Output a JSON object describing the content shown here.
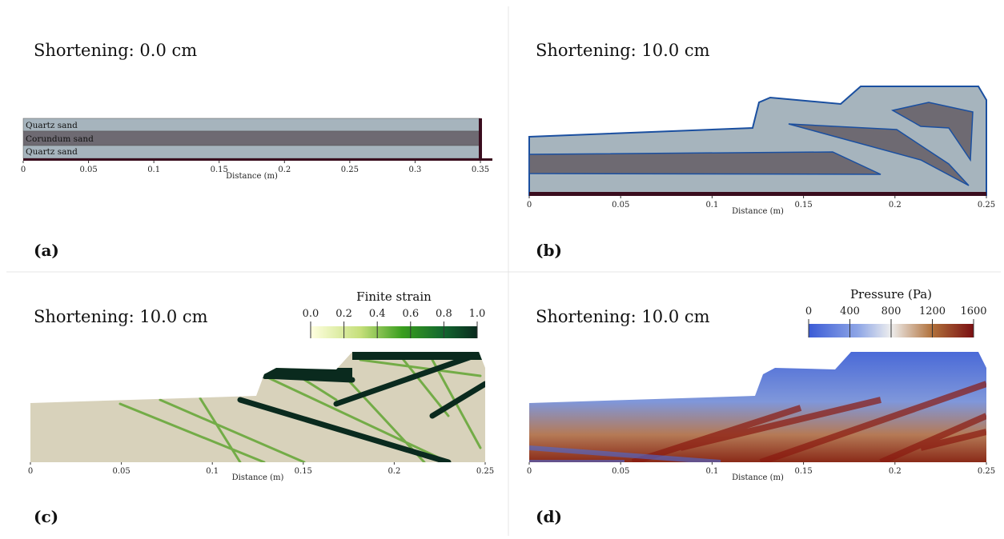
{
  "panels": [
    {
      "title": "Shortening: 0.0 cm",
      "label": "(a)",
      "x_axis": {
        "label": "Distance (m)",
        "lim": [
          0,
          0.35
        ],
        "ticks": [
          0,
          0.05,
          0.1,
          0.15,
          0.2,
          0.25,
          0.3,
          0.35
        ]
      },
      "layers": [
        "Quartz sand",
        "Corundum sand",
        "Quartz sand"
      ]
    },
    {
      "title": "Shortening: 10.0 cm",
      "label": "(b)",
      "x_axis": {
        "label": "Distance (m)",
        "lim": [
          0,
          0.25
        ],
        "ticks": [
          0,
          0.05,
          0.1,
          0.15,
          0.2,
          0.25
        ]
      }
    },
    {
      "title": "Shortening: 10.0 cm",
      "label": "(c)",
      "x_axis": {
        "label": "Distance (m)",
        "lim": [
          0,
          0.25
        ],
        "ticks": [
          0,
          0.05,
          0.1,
          0.15,
          0.2,
          0.25
        ]
      },
      "colorbar": {
        "title": "Finite strain",
        "lim": [
          0,
          1
        ],
        "ticks": [
          {
            "value": 0,
            "label": "0.0"
          },
          0.2,
          0.4,
          0.6,
          0.8,
          {
            "value": 1,
            "label": "1.0"
          }
        ]
      }
    },
    {
      "title": "Shortening: 10.0 cm",
      "label": "(d)",
      "x_axis": {
        "label": "Distance (m)",
        "lim": [
          0,
          0.25
        ],
        "ticks": [
          0,
          0.05,
          0.1,
          0.15,
          0.2,
          0.25
        ]
      },
      "colorbar": {
        "title": "Pressure (Pa)",
        "lim": [
          0,
          1600
        ],
        "ticks": [
          0,
          400,
          800,
          1200,
          1600
        ]
      }
    }
  ]
}
